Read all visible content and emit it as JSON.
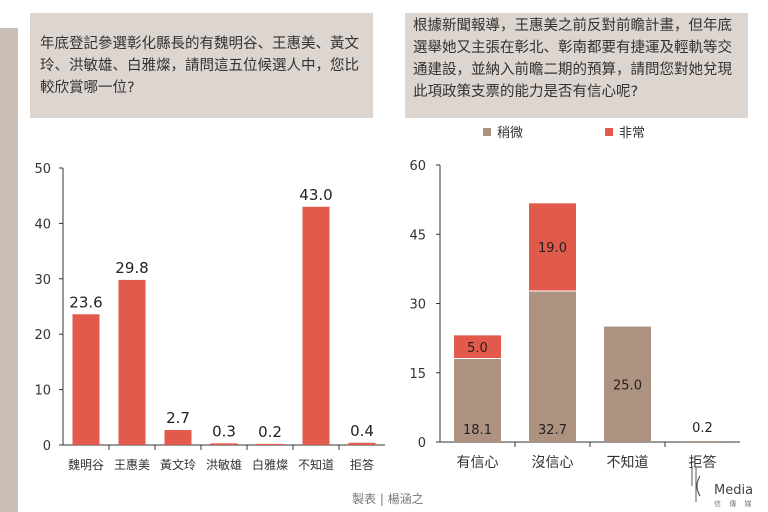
{
  "left_chart": {
    "question": "年底登記參選彰化縣長的有魏明谷、王惠美、黃文玲、洪敏雄、白雅燦，請問這五位候選人中，您比較欣賞哪一位?",
    "chart_data": {
      "type": "bar",
      "title": "",
      "xlabel": "",
      "ylabel": "",
      "categories": [
        "魏明谷",
        "王惠美",
        "黃文玲",
        "洪敏雄",
        "白雅燦",
        "不知道",
        "拒答"
      ],
      "values": [
        23.6,
        29.8,
        2.7,
        0.3,
        0.2,
        43.0,
        0.4
      ],
      "value_labels": [
        "23.6",
        "29.8",
        "2.7",
        "0.3",
        "0.2",
        "43.0",
        "0.4"
      ],
      "ylim": [
        0,
        50
      ],
      "yticks": [
        "0",
        "10",
        "20",
        "30",
        "40",
        "50"
      ],
      "color": "#e25a4b",
      "grid": false
    }
  },
  "right_chart": {
    "question": "根據新聞報導，王惠美之前反對前瞻計畫，但年底選舉她又主張在彰北、彰南都要有捷運及輕軌等交通建設，並納入前瞻二期的預算，請問您對她兌現此項政策支票的能力是否有信心呢?",
    "chart_data": {
      "type": "bar",
      "stacked": true,
      "title": "",
      "xlabel": "",
      "ylabel": "",
      "categories": [
        "有信心",
        "沒信心",
        "不知道",
        "拒答"
      ],
      "series": [
        {
          "name": "稍微",
          "color": "#ad9280",
          "values": [
            18.1,
            32.7,
            25.0,
            0.2
          ],
          "labels": [
            "18.1",
            "32.7",
            "25.0",
            "0.2"
          ]
        },
        {
          "name": "非常",
          "color": "#e25a4b",
          "values": [
            5.0,
            19.0,
            0,
            0
          ],
          "labels": [
            "5.0",
            "19.0",
            "",
            ""
          ]
        }
      ],
      "ylim": [
        0,
        60
      ],
      "yticks": [
        "0",
        "15",
        "30",
        "45",
        "60"
      ],
      "legend_position": "top",
      "grid": false
    }
  },
  "footer": {
    "credit": "製表 | 楊涵之"
  },
  "logo": {
    "text": "Media",
    "sub": "信 傳 媒"
  }
}
